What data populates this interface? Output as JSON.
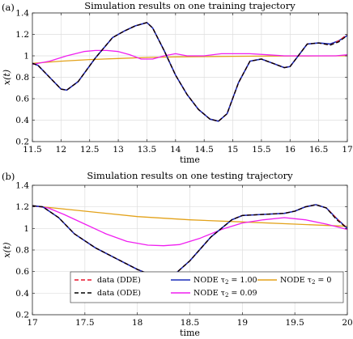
{
  "chart_data": [
    {
      "type": "line",
      "panel_tag": "(a)",
      "title": "Simulation results on one training trajectory",
      "xlabel": "time",
      "ylabel": "x(t)",
      "xlim": [
        11.5,
        17
      ],
      "ylim": [
        0.2,
        1.4
      ],
      "xticks": [
        11.5,
        12,
        12.5,
        13,
        13.5,
        14,
        14.5,
        15,
        15.5,
        16,
        16.5,
        17
      ],
      "xtick_labels": [
        "11.5",
        "12",
        "12.5",
        "13",
        "13.5",
        "14",
        "14.5",
        "15",
        "15.5",
        "16",
        "16.5",
        "17"
      ],
      "yticks": [
        0.2,
        0.4,
        0.6,
        0.8,
        1.0,
        1.2,
        1.4
      ],
      "ytick_labels": [
        "0.2",
        "0.4",
        "0.6",
        "0.8",
        "1",
        "1.2",
        "1.4"
      ],
      "grid": true,
      "series": [
        {
          "key": "dde",
          "color": "#e8132a",
          "dash": "dashed",
          "x": [
            11.5,
            11.6,
            11.8,
            12.0,
            12.1,
            12.3,
            12.6,
            12.9,
            13.1,
            13.3,
            13.5,
            13.6,
            13.8,
            14.0,
            14.2,
            14.4,
            14.6,
            14.75,
            14.9,
            15.1,
            15.3,
            15.5,
            15.7,
            15.9,
            16.0,
            16.1,
            16.3,
            16.5,
            16.7,
            16.85,
            17.0
          ],
          "y": [
            0.93,
            0.91,
            0.8,
            0.69,
            0.68,
            0.76,
            0.98,
            1.17,
            1.23,
            1.28,
            1.31,
            1.26,
            1.05,
            0.82,
            0.64,
            0.5,
            0.41,
            0.39,
            0.46,
            0.75,
            0.95,
            0.97,
            0.93,
            0.89,
            0.9,
            0.97,
            1.11,
            1.12,
            1.1,
            1.14,
            1.2
          ]
        },
        {
          "key": "ode",
          "color": "#000000",
          "dash": "dashed",
          "x": [
            11.5,
            11.6,
            11.8,
            12.0,
            12.1,
            12.3,
            12.6,
            12.9,
            13.1,
            13.3,
            13.5,
            13.6,
            13.8,
            14.0,
            14.2,
            14.4,
            14.6,
            14.75,
            14.9,
            15.1,
            15.3,
            15.5,
            15.7,
            15.9,
            16.0,
            16.1,
            16.3,
            16.5,
            16.7,
            16.85,
            17.0
          ],
          "y": [
            0.93,
            0.91,
            0.8,
            0.69,
            0.68,
            0.76,
            0.98,
            1.17,
            1.23,
            1.28,
            1.31,
            1.26,
            1.05,
            0.82,
            0.64,
            0.5,
            0.41,
            0.39,
            0.46,
            0.75,
            0.95,
            0.97,
            0.93,
            0.89,
            0.9,
            0.97,
            1.11,
            1.12,
            1.1,
            1.13,
            1.19
          ]
        },
        {
          "key": "node_100",
          "color": "#1a2bb8",
          "dash": "solid",
          "x": [
            11.5,
            11.6,
            11.8,
            12.0,
            12.1,
            12.3,
            12.6,
            12.9,
            13.1,
            13.3,
            13.5,
            13.6,
            13.8,
            14.0,
            14.2,
            14.4,
            14.6,
            14.75,
            14.9,
            15.1,
            15.3,
            15.5,
            15.7,
            15.9,
            16.0,
            16.1,
            16.3,
            16.5,
            16.7,
            16.85,
            17.0
          ],
          "y": [
            0.93,
            0.91,
            0.8,
            0.69,
            0.68,
            0.76,
            0.98,
            1.17,
            1.23,
            1.28,
            1.31,
            1.26,
            1.05,
            0.82,
            0.64,
            0.5,
            0.41,
            0.39,
            0.46,
            0.75,
            0.95,
            0.97,
            0.93,
            0.89,
            0.9,
            0.97,
            1.11,
            1.12,
            1.11,
            1.14,
            1.19
          ]
        },
        {
          "key": "node_009",
          "color": "#f01ff0",
          "dash": "solid",
          "x": [
            11.5,
            11.8,
            12.1,
            12.4,
            12.6,
            12.8,
            13.0,
            13.2,
            13.4,
            13.6,
            13.8,
            14.0,
            14.2,
            14.5,
            14.8,
            15.0,
            15.3,
            15.6,
            15.9,
            16.2,
            16.5,
            16.8,
            17.0
          ],
          "y": [
            0.92,
            0.95,
            1.0,
            1.04,
            1.05,
            1.05,
            1.04,
            1.01,
            0.97,
            0.97,
            1.0,
            1.02,
            1.0,
            1.0,
            1.02,
            1.02,
            1.02,
            1.01,
            1.0,
            1.0,
            1.0,
            1.0,
            1.01
          ]
        },
        {
          "key": "node_0",
          "color": "#e3a21a",
          "dash": "solid",
          "x": [
            11.5,
            12.0,
            12.5,
            13.0,
            13.5,
            14.0,
            14.5,
            15.0,
            15.5,
            16.0,
            16.5,
            17.0
          ],
          "y": [
            0.93,
            0.95,
            0.965,
            0.975,
            0.985,
            0.99,
            0.993,
            0.995,
            0.997,
            0.998,
            0.999,
            1.0
          ]
        }
      ]
    },
    {
      "type": "line",
      "panel_tag": "(b)",
      "title": "Simulation results on one testing trajectory",
      "xlabel": "time",
      "ylabel": "x(t)",
      "xlim": [
        17,
        20
      ],
      "ylim": [
        0.2,
        1.4
      ],
      "xticks": [
        17,
        17.5,
        18,
        18.5,
        19,
        19.5,
        20
      ],
      "xtick_labels": [
        "17",
        "17.5",
        "18",
        "18.5",
        "19",
        "19.5",
        "20"
      ],
      "yticks": [
        0.2,
        0.4,
        0.6,
        0.8,
        1.0,
        1.2,
        1.4
      ],
      "ytick_labels": [
        "0.2",
        "0.4",
        "0.6",
        "0.8",
        "1",
        "1.2",
        "1.4"
      ],
      "grid": true,
      "legend_position": "bottom",
      "series": [
        {
          "key": "dde",
          "color": "#e8132a",
          "dash": "dashed",
          "x": [
            17.0,
            17.1,
            17.25,
            17.4,
            17.6,
            17.8,
            18.0,
            18.15,
            18.25,
            18.35,
            18.5,
            18.7,
            18.9,
            19.0,
            19.2,
            19.4,
            19.5,
            19.6,
            19.7,
            19.8,
            19.9,
            20.0
          ],
          "y": [
            1.21,
            1.2,
            1.1,
            0.95,
            0.82,
            0.72,
            0.62,
            0.56,
            0.55,
            0.57,
            0.7,
            0.92,
            1.08,
            1.12,
            1.13,
            1.14,
            1.16,
            1.2,
            1.22,
            1.19,
            1.09,
            1.0
          ]
        },
        {
          "key": "ode",
          "color": "#000000",
          "dash": "dashed",
          "x": [
            17.0,
            17.1,
            17.25,
            17.4,
            17.6,
            17.8,
            18.0,
            18.15,
            18.25,
            18.35,
            18.5,
            18.7,
            18.9,
            19.0,
            19.2,
            19.4,
            19.5,
            19.6,
            19.7,
            19.8,
            19.9,
            20.0
          ],
          "y": [
            1.21,
            1.2,
            1.1,
            0.95,
            0.82,
            0.72,
            0.62,
            0.56,
            0.55,
            0.57,
            0.7,
            0.92,
            1.08,
            1.12,
            1.13,
            1.14,
            1.16,
            1.2,
            1.22,
            1.19,
            1.08,
            1.0
          ]
        },
        {
          "key": "node_100",
          "color": "#1a2bb8",
          "dash": "solid",
          "x": [
            17.0,
            17.1,
            17.25,
            17.4,
            17.6,
            17.8,
            18.0,
            18.15,
            18.25,
            18.35,
            18.5,
            18.7,
            18.9,
            19.0,
            19.2,
            19.4,
            19.5,
            19.6,
            19.7,
            19.8,
            19.9,
            20.0
          ],
          "y": [
            1.21,
            1.2,
            1.1,
            0.95,
            0.82,
            0.72,
            0.62,
            0.56,
            0.55,
            0.57,
            0.7,
            0.92,
            1.08,
            1.12,
            1.13,
            1.14,
            1.16,
            1.2,
            1.22,
            1.19,
            1.09,
            1.0
          ]
        },
        {
          "key": "node_009",
          "color": "#f01ff0",
          "dash": "solid",
          "x": [
            17.0,
            17.15,
            17.3,
            17.5,
            17.7,
            17.9,
            18.1,
            18.25,
            18.4,
            18.6,
            18.8,
            19.0,
            19.2,
            19.4,
            19.6,
            19.8,
            20.0
          ],
          "y": [
            1.21,
            1.19,
            1.13,
            1.04,
            0.95,
            0.88,
            0.845,
            0.84,
            0.85,
            0.91,
            0.99,
            1.05,
            1.08,
            1.1,
            1.08,
            1.04,
            0.99
          ]
        },
        {
          "key": "node_0",
          "color": "#e3a21a",
          "dash": "solid",
          "x": [
            17.0,
            17.5,
            18.0,
            18.5,
            19.0,
            19.5,
            20.0
          ],
          "y": [
            1.21,
            1.16,
            1.11,
            1.08,
            1.06,
            1.04,
            1.02
          ]
        }
      ]
    }
  ],
  "legend": {
    "items": [
      {
        "key": "dde",
        "label_main": "data (DDE)",
        "label_sub": ""
      },
      {
        "key": "node_100",
        "label_main": "NODE τ",
        "label_sub": "2",
        "label_rest": " = 1.00"
      },
      {
        "key": "node_0",
        "label_main": "NODE τ",
        "label_sub": "2",
        "label_rest": " = 0"
      },
      {
        "key": "ode",
        "label_main": "data (ODE)",
        "label_sub": ""
      },
      {
        "key": "node_009",
        "label_main": "NODE τ",
        "label_sub": "2",
        "label_rest": " = 0.09"
      }
    ]
  }
}
